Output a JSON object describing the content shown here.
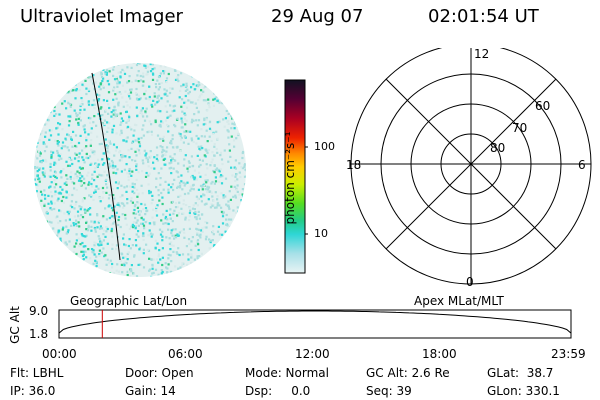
{
  "header": {
    "title": "Ultraviolet Imager",
    "date": "29 Aug 07",
    "time": "02:01:54 UT"
  },
  "colorbar": {
    "unit_label": "photon cm⁻²s⁻¹",
    "ticks": [
      "100",
      "10"
    ]
  },
  "polar": {
    "mlt_labels": {
      "top": "12",
      "left": "18",
      "right": "6",
      "bottom": "0"
    },
    "lat_labels": [
      "60",
      "70",
      "80"
    ]
  },
  "timeline": {
    "left_label": "Geographic Lat/Lon",
    "right_label": "Apex MLat/MLT",
    "axis_title": "GC Alt",
    "y_ticks": [
      "9.0",
      "1.8"
    ],
    "x_ticks": [
      "00:00",
      "06:00",
      "12:00",
      "18:00",
      "23:59"
    ],
    "current_time_hours": 2.03,
    "marker_color": "#cc0000"
  },
  "info": {
    "filter": "Flt: LBHL",
    "ip": "IP: 36.0",
    "door": "Door: Open",
    "gain": "Gain: 14",
    "mode": "Mode: Normal",
    "dsp": "Dsp:     0.0",
    "gc_alt": "GC Alt: 2.6 Re",
    "seq": "Seq: 39",
    "glat": "GLat:  38.7",
    "glon": "GLon: 330.1"
  },
  "colors": {
    "disk_dim": "#d7eaea",
    "disk_cyan": "#33d9d9",
    "disk_green": "#33cc88"
  }
}
